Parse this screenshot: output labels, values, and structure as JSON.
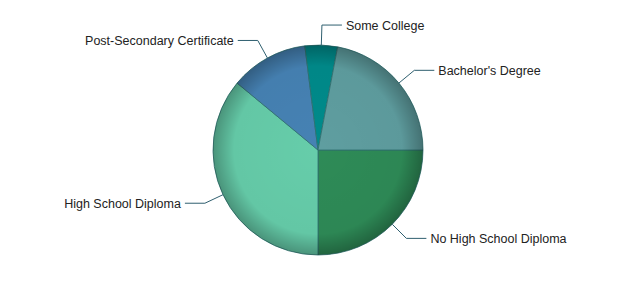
{
  "chart_data": {
    "type": "pie",
    "categories": [
      "No High School Diploma",
      "High School Diploma",
      "Post-Secondary Certificate",
      "Some College",
      "Bachelor's Degree"
    ],
    "values": [
      25,
      36,
      12,
      5,
      22
    ],
    "colors": [
      "#2e8b57",
      "#66cdaa",
      "#4682b4",
      "#008b8b",
      "#5f9ea0"
    ]
  }
}
